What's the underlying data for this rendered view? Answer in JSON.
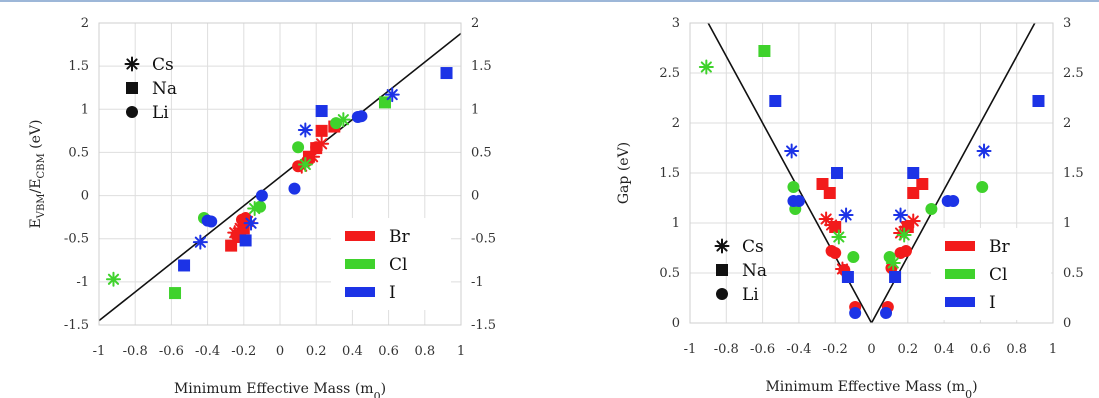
{
  "chart_data": [
    {
      "type": "scatter",
      "title": "",
      "xlabel": "Minimum Effective Mass (m",
      "xlabel_sub": "0",
      "xlabel_tail": ")",
      "ylabel_parts": [
        "E",
        "VBM",
        "/E",
        "CBM",
        " (eV)"
      ],
      "xlim": [
        -1,
        1
      ],
      "ylim": [
        -1.5,
        2
      ],
      "xticks": [
        "-1",
        "-0.8",
        "-0.6",
        "-0.4",
        "-0.2",
        "0",
        "0.2",
        "0.4",
        "0.6",
        "0.8",
        "1"
      ],
      "yticks": [
        "-1.5",
        "-1",
        "-0.5",
        "0",
        "0.5",
        "1",
        "1.5",
        "2"
      ],
      "fit_line": [
        [
          -1,
          -1.45
        ],
        [
          1,
          1.88
        ]
      ],
      "marker_legend": [
        {
          "label": "Cs",
          "marker": "star"
        },
        {
          "label": "Na",
          "marker": "square"
        },
        {
          "label": "Li",
          "marker": "circle"
        }
      ],
      "color_legend": [
        {
          "label": "Br",
          "color": "#f21b1b"
        },
        {
          "label": "Cl",
          "color": "#3fd22c"
        },
        {
          "label": "I",
          "color": "#1c33e6"
        }
      ],
      "series": [
        {
          "halide": "Br",
          "marker": "star",
          "points": [
            [
              -0.25,
              -0.43
            ],
            [
              -0.22,
              -0.38
            ],
            [
              -0.18,
              -0.3
            ],
            [
              0.12,
              0.34
            ],
            [
              0.18,
              0.45
            ],
            [
              0.23,
              0.6
            ]
          ]
        },
        {
          "halide": "Br",
          "marker": "square",
          "points": [
            [
              -0.27,
              -0.58
            ],
            [
              -0.22,
              -0.48
            ],
            [
              -0.2,
              -0.38
            ],
            [
              0.16,
              0.45
            ],
            [
              0.2,
              0.55
            ],
            [
              0.23,
              0.75
            ],
            [
              0.3,
              0.8
            ]
          ]
        },
        {
          "halide": "Br",
          "marker": "circle",
          "points": [
            [
              -0.24,
              -0.46
            ],
            [
              -0.21,
              -0.28
            ],
            [
              -0.19,
              -0.26
            ],
            [
              0.1,
              0.34
            ],
            [
              0.15,
              0.4
            ],
            [
              0.2,
              0.56
            ]
          ]
        },
        {
          "halide": "Cl",
          "marker": "star",
          "points": [
            [
              -0.92,
              -0.97
            ],
            [
              -0.14,
              -0.15
            ],
            [
              0.14,
              0.36
            ],
            [
              0.35,
              0.88
            ]
          ]
        },
        {
          "halide": "Cl",
          "marker": "square",
          "points": [
            [
              -0.58,
              -1.13
            ],
            [
              0.58,
              1.08
            ]
          ]
        },
        {
          "halide": "Cl",
          "marker": "circle",
          "points": [
            [
              -0.42,
              -0.26
            ],
            [
              -0.11,
              -0.13
            ],
            [
              0.1,
              0.56
            ],
            [
              0.31,
              0.84
            ]
          ]
        },
        {
          "halide": "I",
          "marker": "star",
          "points": [
            [
              -0.44,
              -0.54
            ],
            [
              -0.16,
              -0.32
            ],
            [
              0.14,
              0.76
            ],
            [
              0.62,
              1.17
            ]
          ]
        },
        {
          "halide": "I",
          "marker": "square",
          "points": [
            [
              -0.53,
              -0.81
            ],
            [
              -0.19,
              -0.52
            ],
            [
              0.23,
              0.98
            ],
            [
              0.92,
              1.42
            ]
          ]
        },
        {
          "halide": "I",
          "marker": "circle",
          "points": [
            [
              -0.4,
              -0.29
            ],
            [
              -0.38,
              -0.3
            ],
            [
              -0.1,
              0.0
            ],
            [
              0.08,
              0.08
            ],
            [
              0.43,
              0.91
            ],
            [
              0.45,
              0.92
            ]
          ]
        }
      ]
    },
    {
      "type": "scatter",
      "title": "",
      "xlabel": "Minimum Effective Mass (m",
      "xlabel_sub": "0",
      "xlabel_tail": ")",
      "ylabel_parts": [
        "Gap (eV)"
      ],
      "xlim": [
        -1,
        1
      ],
      "ylim": [
        0,
        3
      ],
      "xticks": [
        "-1",
        "-0.8",
        "-0.6",
        "-0.4",
        "-0.2",
        "0",
        "0.2",
        "0.4",
        "0.6",
        "0.8",
        "1"
      ],
      "yticks": [
        "0",
        "0.5",
        "1",
        "1.5",
        "2",
        "2.5",
        "3"
      ],
      "fit_line": [
        [
          -0.9,
          3.0
        ],
        [
          0,
          0
        ],
        [
          0.9,
          3.0
        ]
      ],
      "marker_legend": [
        {
          "label": "Cs",
          "marker": "star"
        },
        {
          "label": "Na",
          "marker": "square"
        },
        {
          "label": "Li",
          "marker": "circle"
        }
      ],
      "color_legend": [
        {
          "label": "Br",
          "color": "#f21b1b"
        },
        {
          "label": "Cl",
          "color": "#3fd22c"
        },
        {
          "label": "I",
          "color": "#1c33e6"
        }
      ],
      "series": [
        {
          "halide": "Br",
          "marker": "star",
          "points": [
            [
              -0.25,
              1.04
            ],
            [
              -0.22,
              0.98
            ],
            [
              -0.16,
              0.54
            ],
            [
              0.16,
              0.9
            ],
            [
              0.19,
              0.96
            ],
            [
              0.23,
              1.02
            ]
          ]
        },
        {
          "halide": "Br",
          "marker": "square",
          "points": [
            [
              -0.27,
              1.39
            ],
            [
              -0.23,
              1.3
            ],
            [
              -0.2,
              0.96
            ],
            [
              0.2,
              0.96
            ],
            [
              0.23,
              1.3
            ],
            [
              0.28,
              1.39
            ]
          ]
        },
        {
          "halide": "Br",
          "marker": "circle",
          "points": [
            [
              -0.22,
              0.72
            ],
            [
              -0.2,
              0.7
            ],
            [
              -0.15,
              0.53
            ],
            [
              -0.09,
              0.16
            ],
            [
              0.09,
              0.16
            ],
            [
              0.11,
              0.55
            ],
            [
              0.16,
              0.7
            ],
            [
              0.19,
              0.72
            ]
          ]
        },
        {
          "halide": "Cl",
          "marker": "star",
          "points": [
            [
              -0.91,
              2.56
            ],
            [
              -0.18,
              0.86
            ],
            [
              0.12,
              0.6
            ],
            [
              0.18,
              0.88
            ]
          ]
        },
        {
          "halide": "Cl",
          "marker": "square",
          "points": [
            [
              -0.59,
              2.72
            ]
          ]
        },
        {
          "halide": "Cl",
          "marker": "circle",
          "points": [
            [
              -0.43,
              1.36
            ],
            [
              -0.42,
              1.14
            ],
            [
              -0.1,
              0.66
            ],
            [
              0.1,
              0.66
            ],
            [
              0.33,
              1.14
            ],
            [
              0.61,
              1.36
            ]
          ]
        },
        {
          "halide": "I",
          "marker": "star",
          "points": [
            [
              -0.44,
              1.72
            ],
            [
              -0.14,
              1.08
            ],
            [
              0.16,
              1.08
            ],
            [
              0.62,
              1.72
            ]
          ]
        },
        {
          "halide": "I",
          "marker": "square",
          "points": [
            [
              -0.53,
              2.22
            ],
            [
              -0.19,
              1.5
            ],
            [
              -0.13,
              0.46
            ],
            [
              0.13,
              0.46
            ],
            [
              0.23,
              1.5
            ],
            [
              0.92,
              2.22
            ]
          ]
        },
        {
          "halide": "I",
          "marker": "circle",
          "points": [
            [
              -0.43,
              1.22
            ],
            [
              -0.4,
              1.22
            ],
            [
              -0.09,
              0.1
            ],
            [
              0.08,
              0.1
            ],
            [
              0.42,
              1.22
            ],
            [
              0.45,
              1.22
            ]
          ]
        }
      ]
    }
  ]
}
